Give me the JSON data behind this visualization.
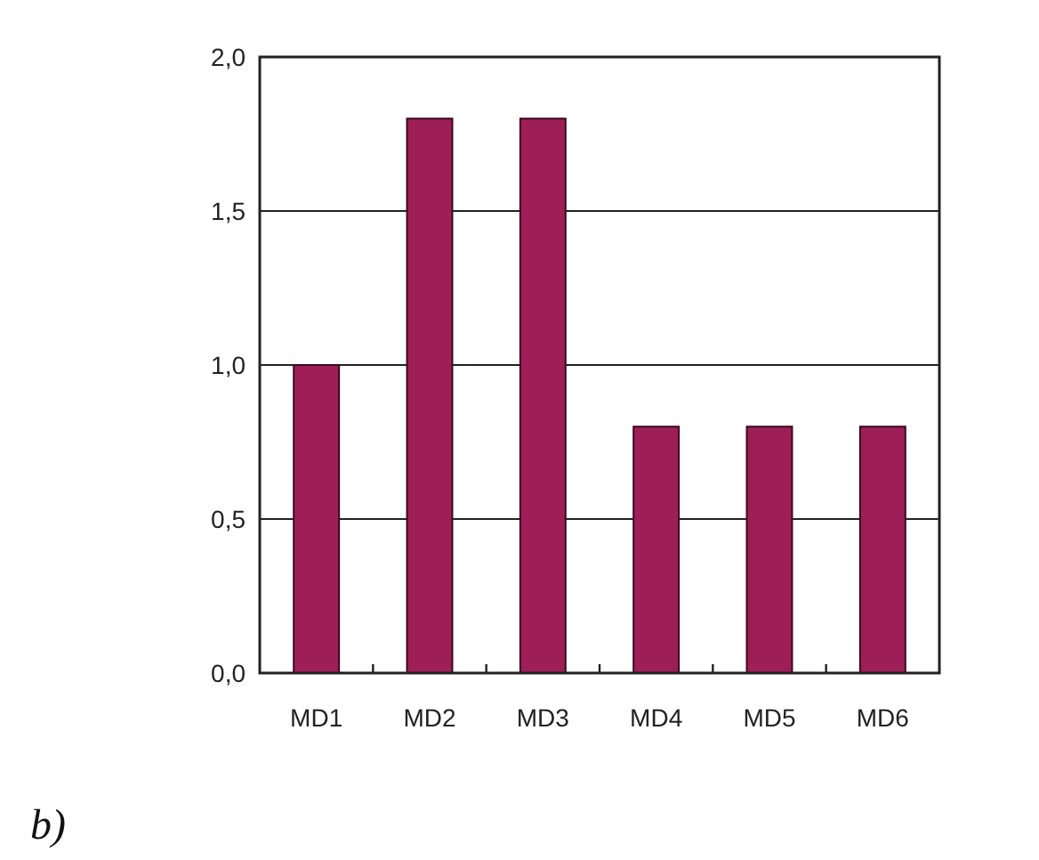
{
  "chart_data": {
    "type": "bar",
    "categories": [
      "MD1",
      "MD2",
      "MD3",
      "MD4",
      "MD5",
      "MD6"
    ],
    "values": [
      1.0,
      1.8,
      1.8,
      0.8,
      0.8,
      0.8
    ],
    "color": "#9e1f57",
    "ylim": [
      0,
      2
    ],
    "yticks": [
      {
        "value": 0,
        "label": "0,0"
      },
      {
        "value": 0.5,
        "label": "0,5"
      },
      {
        "value": 1,
        "label": "1,0"
      },
      {
        "value": 1.5,
        "label": "1,5"
      },
      {
        "value": 2,
        "label": "2,0"
      }
    ],
    "grid": "y",
    "annotations": [
      "b)"
    ]
  }
}
